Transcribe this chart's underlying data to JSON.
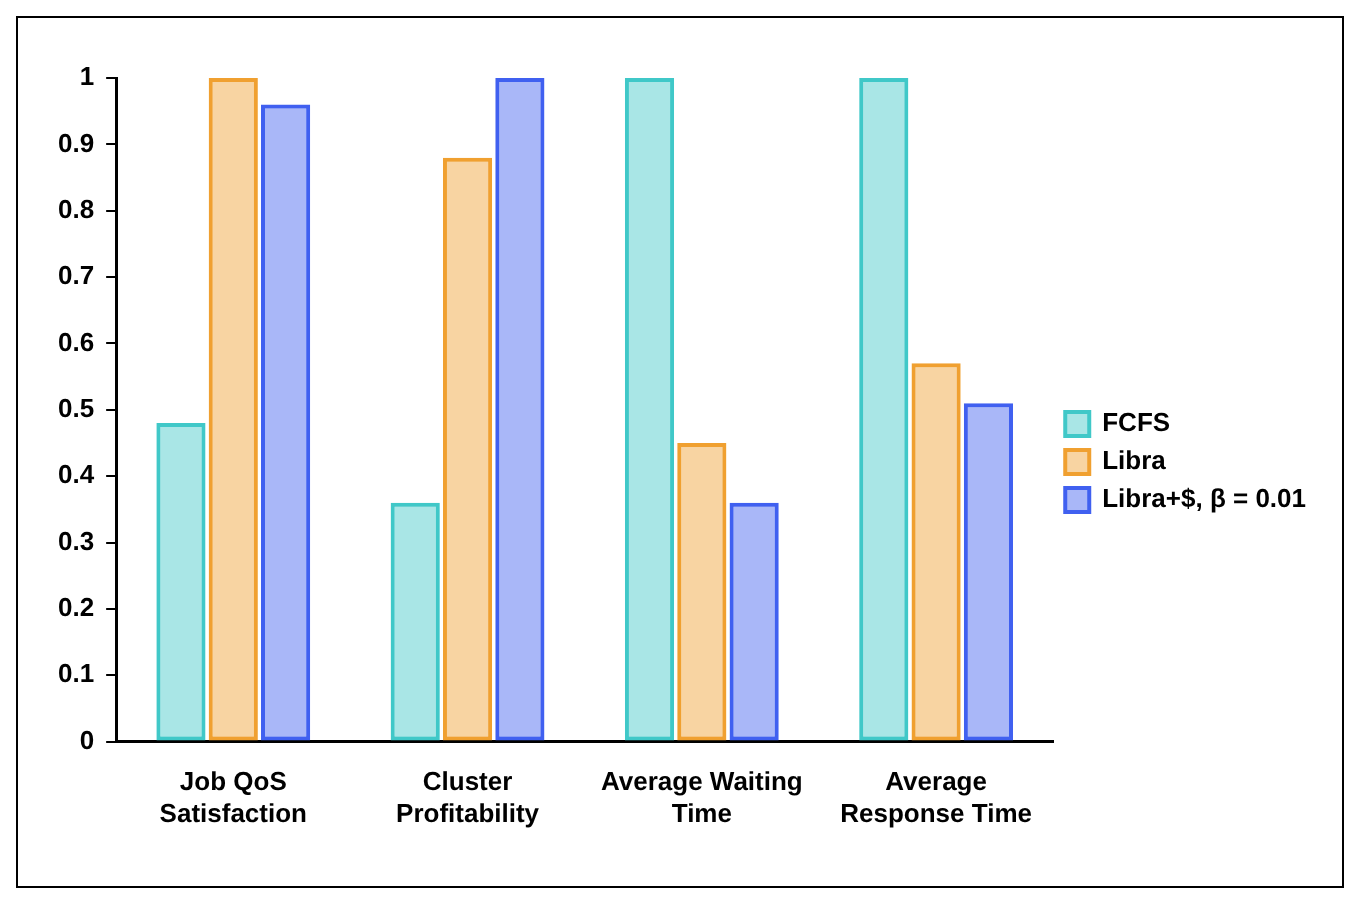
{
  "chart_data": {
    "type": "bar",
    "categories": [
      "Job QoS Satisfaction",
      "Cluster Profitability",
      "Average Waiting Time",
      "Average Response Time"
    ],
    "series": [
      {
        "name": "FCFS",
        "color": "#40c8c8",
        "values": [
          0.48,
          0.36,
          1,
          1
        ]
      },
      {
        "name": "Libra",
        "color": "#f0a030",
        "values": [
          1,
          0.88,
          0.45,
          0.57
        ]
      },
      {
        "name": "Libra+$, β = 0.01",
        "color": "#4060f0",
        "values": [
          0.96,
          1,
          0.36,
          0.51
        ]
      }
    ],
    "ylim": [
      0,
      1
    ],
    "yticks": [
      0,
      0.1,
      0.2,
      0.3,
      0.4,
      0.5,
      0.6,
      0.7,
      0.8,
      0.9,
      1
    ],
    "grid": false,
    "legend": "right"
  }
}
